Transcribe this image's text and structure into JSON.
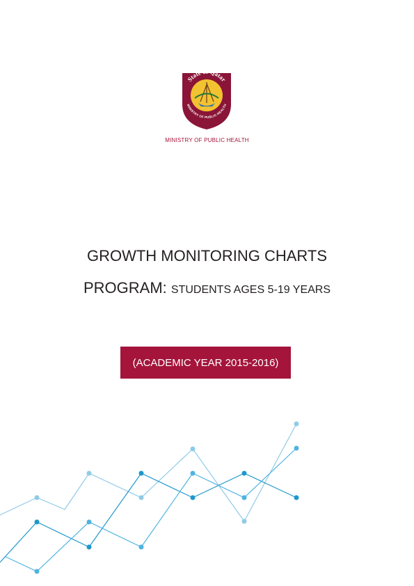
{
  "logo": {
    "top_text": "State of Qatar",
    "bottom_text": "MINISTRY OF PUBLIC HEALTH"
  },
  "ministry": "MINISTRY OF PUBLIC HEALTH",
  "title": {
    "line1": "GROWTH MONITORING CHARTS",
    "line2_main": "PROGRAM:",
    "line2_sub": "STUDENTS AGES 5-19 YEARS"
  },
  "academic_year": "(ACADEMIC YEAR 2015-2016)"
}
